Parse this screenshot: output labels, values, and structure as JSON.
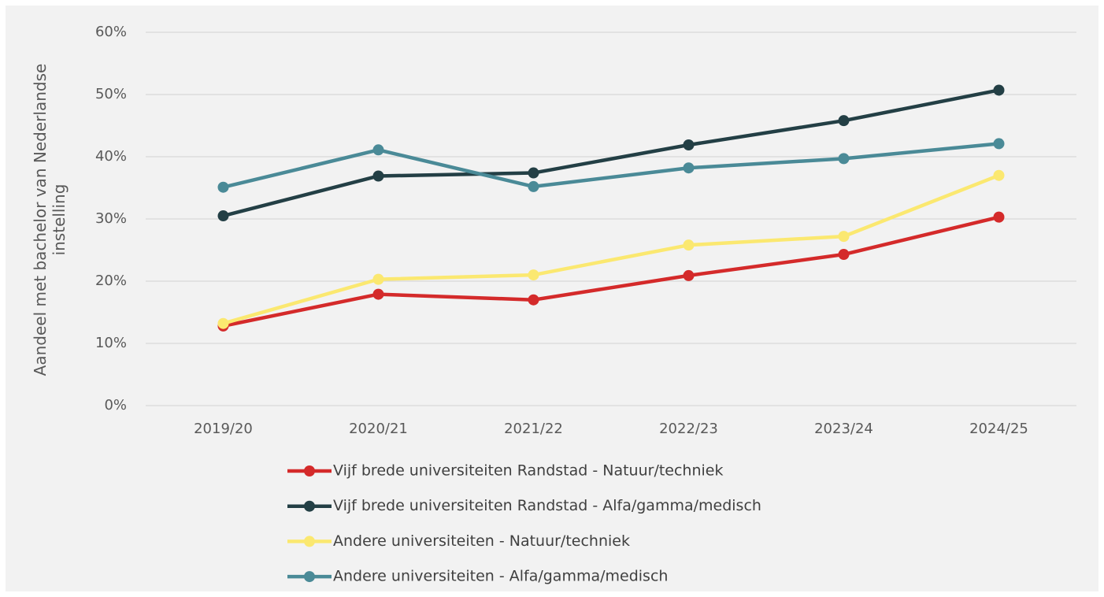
{
  "chart_data": {
    "type": "line",
    "ylabel": "Aandeel met bachelor van Nederlandse instelling",
    "categories": [
      "2019/20",
      "2020/21",
      "2021/22",
      "2022/23",
      "2023/24",
      "2024/25"
    ],
    "series": [
      {
        "name": "Vijf brede universiteiten Randstad - Natuur/techniek",
        "color": "#d42a2a",
        "values": [
          12.8,
          17.9,
          17.0,
          20.9,
          24.3,
          30.3
        ]
      },
      {
        "name": "Vijf brede universiteiten Randstad - Alfa/gamma/medisch",
        "color": "#233f45",
        "values": [
          30.5,
          36.9,
          37.4,
          41.9,
          45.8,
          50.7
        ]
      },
      {
        "name": "Andere universiteiten - Natuur/techniek",
        "color": "#fbe870",
        "values": [
          13.2,
          20.3,
          21.0,
          25.8,
          27.2,
          37.0
        ]
      },
      {
        "name": "Andere universiteiten - Alfa/gamma/medisch",
        "color": "#4a8a97",
        "values": [
          35.1,
          41.1,
          35.2,
          38.2,
          39.7,
          42.1
        ]
      }
    ],
    "ylim": [
      0,
      60
    ],
    "yticks": [
      {
        "value": 0,
        "label": "0%"
      },
      {
        "value": 10,
        "label": "10%"
      },
      {
        "value": 20,
        "label": "20%"
      },
      {
        "value": 30,
        "label": "30%"
      },
      {
        "value": 40,
        "label": "40%"
      },
      {
        "value": 50,
        "label": "50%"
      },
      {
        "value": 60,
        "label": "60%"
      }
    ],
    "grid": true,
    "legend": "bottom"
  }
}
